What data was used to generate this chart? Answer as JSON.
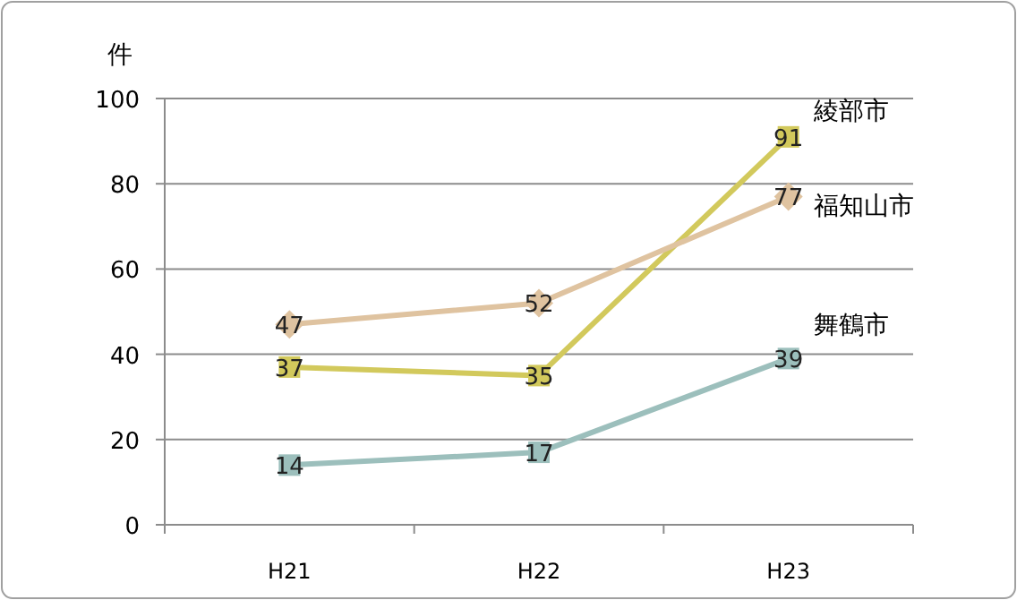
{
  "chart_data": {
    "type": "line",
    "ylabel": "件",
    "categories": [
      "H21",
      "H22",
      "H23"
    ],
    "series": [
      {
        "name": "綾部市",
        "color": "#d2c95c",
        "values": [
          37,
          35,
          91
        ],
        "marker": "square"
      },
      {
        "name": "福知山市",
        "color": "#dfc3a0",
        "values": [
          47,
          52,
          77
        ],
        "marker": "diamond"
      },
      {
        "name": "舞鶴市",
        "color": "#9cbfbc",
        "values": [
          14,
          17,
          39
        ],
        "marker": "square"
      }
    ],
    "ylim": [
      0,
      100
    ],
    "yticks": [
      0,
      20,
      40,
      60,
      80,
      100
    ],
    "grid": "y",
    "legend": false,
    "data_labels": true,
    "line_style": "solid"
  }
}
